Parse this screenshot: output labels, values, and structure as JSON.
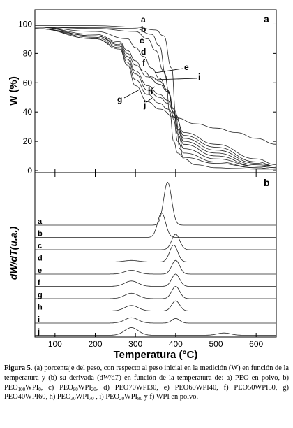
{
  "chart_data": [
    {
      "panel": "a",
      "type": "line",
      "ylabel": "W (%)",
      "xlim": [
        50,
        650
      ],
      "ylim": [
        0,
        105
      ],
      "yticks": [
        0,
        20,
        40,
        60,
        80,
        100
      ],
      "series": [
        {
          "name": "a",
          "x": [
            50,
            200,
            300,
            350,
            370,
            390,
            400,
            410,
            420,
            450,
            500,
            550,
            600,
            650
          ],
          "y": [
            99,
            99,
            98,
            96,
            92,
            70,
            40,
            15,
            8,
            4,
            2,
            1.5,
            1,
            1
          ]
        },
        {
          "name": "b",
          "x": [
            50,
            200,
            300,
            340,
            360,
            375,
            385,
            395,
            405,
            420,
            500,
            600,
            650
          ],
          "y": [
            98,
            97.5,
            97,
            93,
            85,
            65,
            40,
            20,
            12,
            9,
            5,
            2,
            1
          ]
        },
        {
          "name": "c",
          "x": [
            50,
            200,
            300,
            330,
            350,
            370,
            385,
            395,
            405,
            420,
            500,
            600,
            650
          ],
          "y": [
            98,
            97,
            95,
            90,
            82,
            68,
            52,
            35,
            20,
            12,
            6,
            2,
            1
          ]
        },
        {
          "name": "d",
          "x": [
            50,
            200,
            280,
            300,
            320,
            340,
            360,
            380,
            395,
            405,
            420,
            500,
            600,
            650
          ],
          "y": [
            98,
            95,
            90,
            84,
            78,
            70,
            63,
            55,
            40,
            25,
            15,
            8,
            3,
            2
          ]
        },
        {
          "name": "e",
          "x": [
            50,
            200,
            260,
            280,
            300,
            320,
            340,
            360,
            380,
            395,
            405,
            420,
            500,
            600,
            650
          ],
          "y": [
            98,
            93,
            88,
            82,
            75,
            68,
            64,
            61,
            55,
            42,
            28,
            18,
            10,
            3,
            2
          ]
        },
        {
          "name": "f",
          "x": [
            50,
            200,
            260,
            280,
            300,
            330,
            360,
            380,
            395,
            405,
            420,
            500,
            600,
            650
          ],
          "y": [
            98,
            92,
            87,
            80,
            72,
            64,
            59,
            54,
            42,
            30,
            20,
            12,
            4,
            3
          ]
        },
        {
          "name": "g",
          "x": [
            50,
            200,
            260,
            280,
            300,
            330,
            360,
            380,
            395,
            405,
            420,
            500,
            600,
            650
          ],
          "y": [
            97,
            92,
            86,
            78,
            68,
            58,
            52,
            48,
            40,
            30,
            22,
            14,
            5,
            3
          ]
        },
        {
          "name": "h",
          "x": [
            50,
            200,
            260,
            280,
            300,
            330,
            360,
            380,
            400,
            420,
            500,
            600,
            650
          ],
          "y": [
            97,
            91,
            85,
            76,
            66,
            55,
            50,
            46,
            38,
            24,
            16,
            6,
            3
          ]
        },
        {
          "name": "i",
          "x": [
            50,
            200,
            260,
            280,
            300,
            330,
            360,
            380,
            400,
            420,
            500,
            600,
            650
          ],
          "y": [
            97,
            90,
            84,
            74,
            62,
            52,
            46,
            42,
            36,
            26,
            18,
            8,
            4
          ]
        },
        {
          "name": "j",
          "x": [
            50,
            200,
            260,
            280,
            300,
            330,
            360,
            400,
            450,
            500,
            550,
            600,
            650
          ],
          "y": [
            97,
            90,
            83,
            72,
            58,
            47,
            42,
            36,
            32,
            29,
            26,
            22,
            18
          ]
        }
      ],
      "annotations": [
        "a",
        "b",
        "c",
        "d",
        "e",
        "f",
        "g",
        "h",
        "i",
        "j"
      ]
    },
    {
      "panel": "b",
      "type": "line",
      "ylabel": "dW/dT(u.a.)",
      "xlabel": "Temperatura (°C)",
      "xlim": [
        50,
        650
      ],
      "xticks": [
        100,
        200,
        300,
        400,
        500,
        600
      ],
      "series_labels": [
        "a",
        "b",
        "c",
        "d",
        "e",
        "f",
        "g",
        "h",
        "i",
        "j"
      ],
      "peaks": [
        {
          "name": "a",
          "peaks": [
            [
              380,
              5.6
            ]
          ]
        },
        {
          "name": "b",
          "peaks": [
            [
              365,
              3.2
            ]
          ]
        },
        {
          "name": "c",
          "peaks": [
            [
              400,
              2.0
            ]
          ]
        },
        {
          "name": "d",
          "peaks": [
            [
              395,
              2.2
            ],
            [
              290,
              0.2
            ]
          ]
        },
        {
          "name": "e",
          "peaks": [
            [
              400,
              1.8
            ],
            [
              290,
              0.5
            ]
          ]
        },
        {
          "name": "f",
          "peaks": [
            [
              400,
              1.6
            ],
            [
              290,
              0.7
            ]
          ]
        },
        {
          "name": "g",
          "peaks": [
            [
              400,
              1.6
            ],
            [
              290,
              0.7
            ]
          ]
        },
        {
          "name": "h",
          "peaks": [
            [
              400,
              1.3
            ],
            [
              290,
              0.7
            ]
          ]
        },
        {
          "name": "i",
          "peaks": [
            [
              400,
              0.6
            ],
            [
              290,
              0.7
            ]
          ]
        },
        {
          "name": "j",
          "peaks": [
            [
              290,
              1.0
            ],
            [
              520,
              0.3
            ]
          ]
        }
      ]
    }
  ],
  "caption": {
    "label": "Figura 5",
    "text_1": ". (a) porcentaje  del peso, con respecto al peso inicial en la medición (W) en función de la temperatura y (b) su derivada (d",
    "it_W": "W",
    "slash": "/d",
    "it_T": "T",
    "text_2": ")  en función de la temperatura de: a) PEO en polvo, b) PEO",
    "s1": "100",
    "t3": "WPI",
    "s2": "0",
    "t4": ", c) PEO",
    "s3": "80",
    "t5": "WPI",
    "s4": "20",
    "t6": ", d) PEO70WPI30, e) PEO60WPI40, f) PEO50WPI50, g) PEO40WPI60, h) PEO",
    "s5": "30",
    "t7": "WPI",
    "s6": "70",
    "t8": " , i) PEO",
    "s7": "20",
    "t9": "WPI",
    "s8": "80",
    "t10": " y f) WPI en polvo."
  }
}
